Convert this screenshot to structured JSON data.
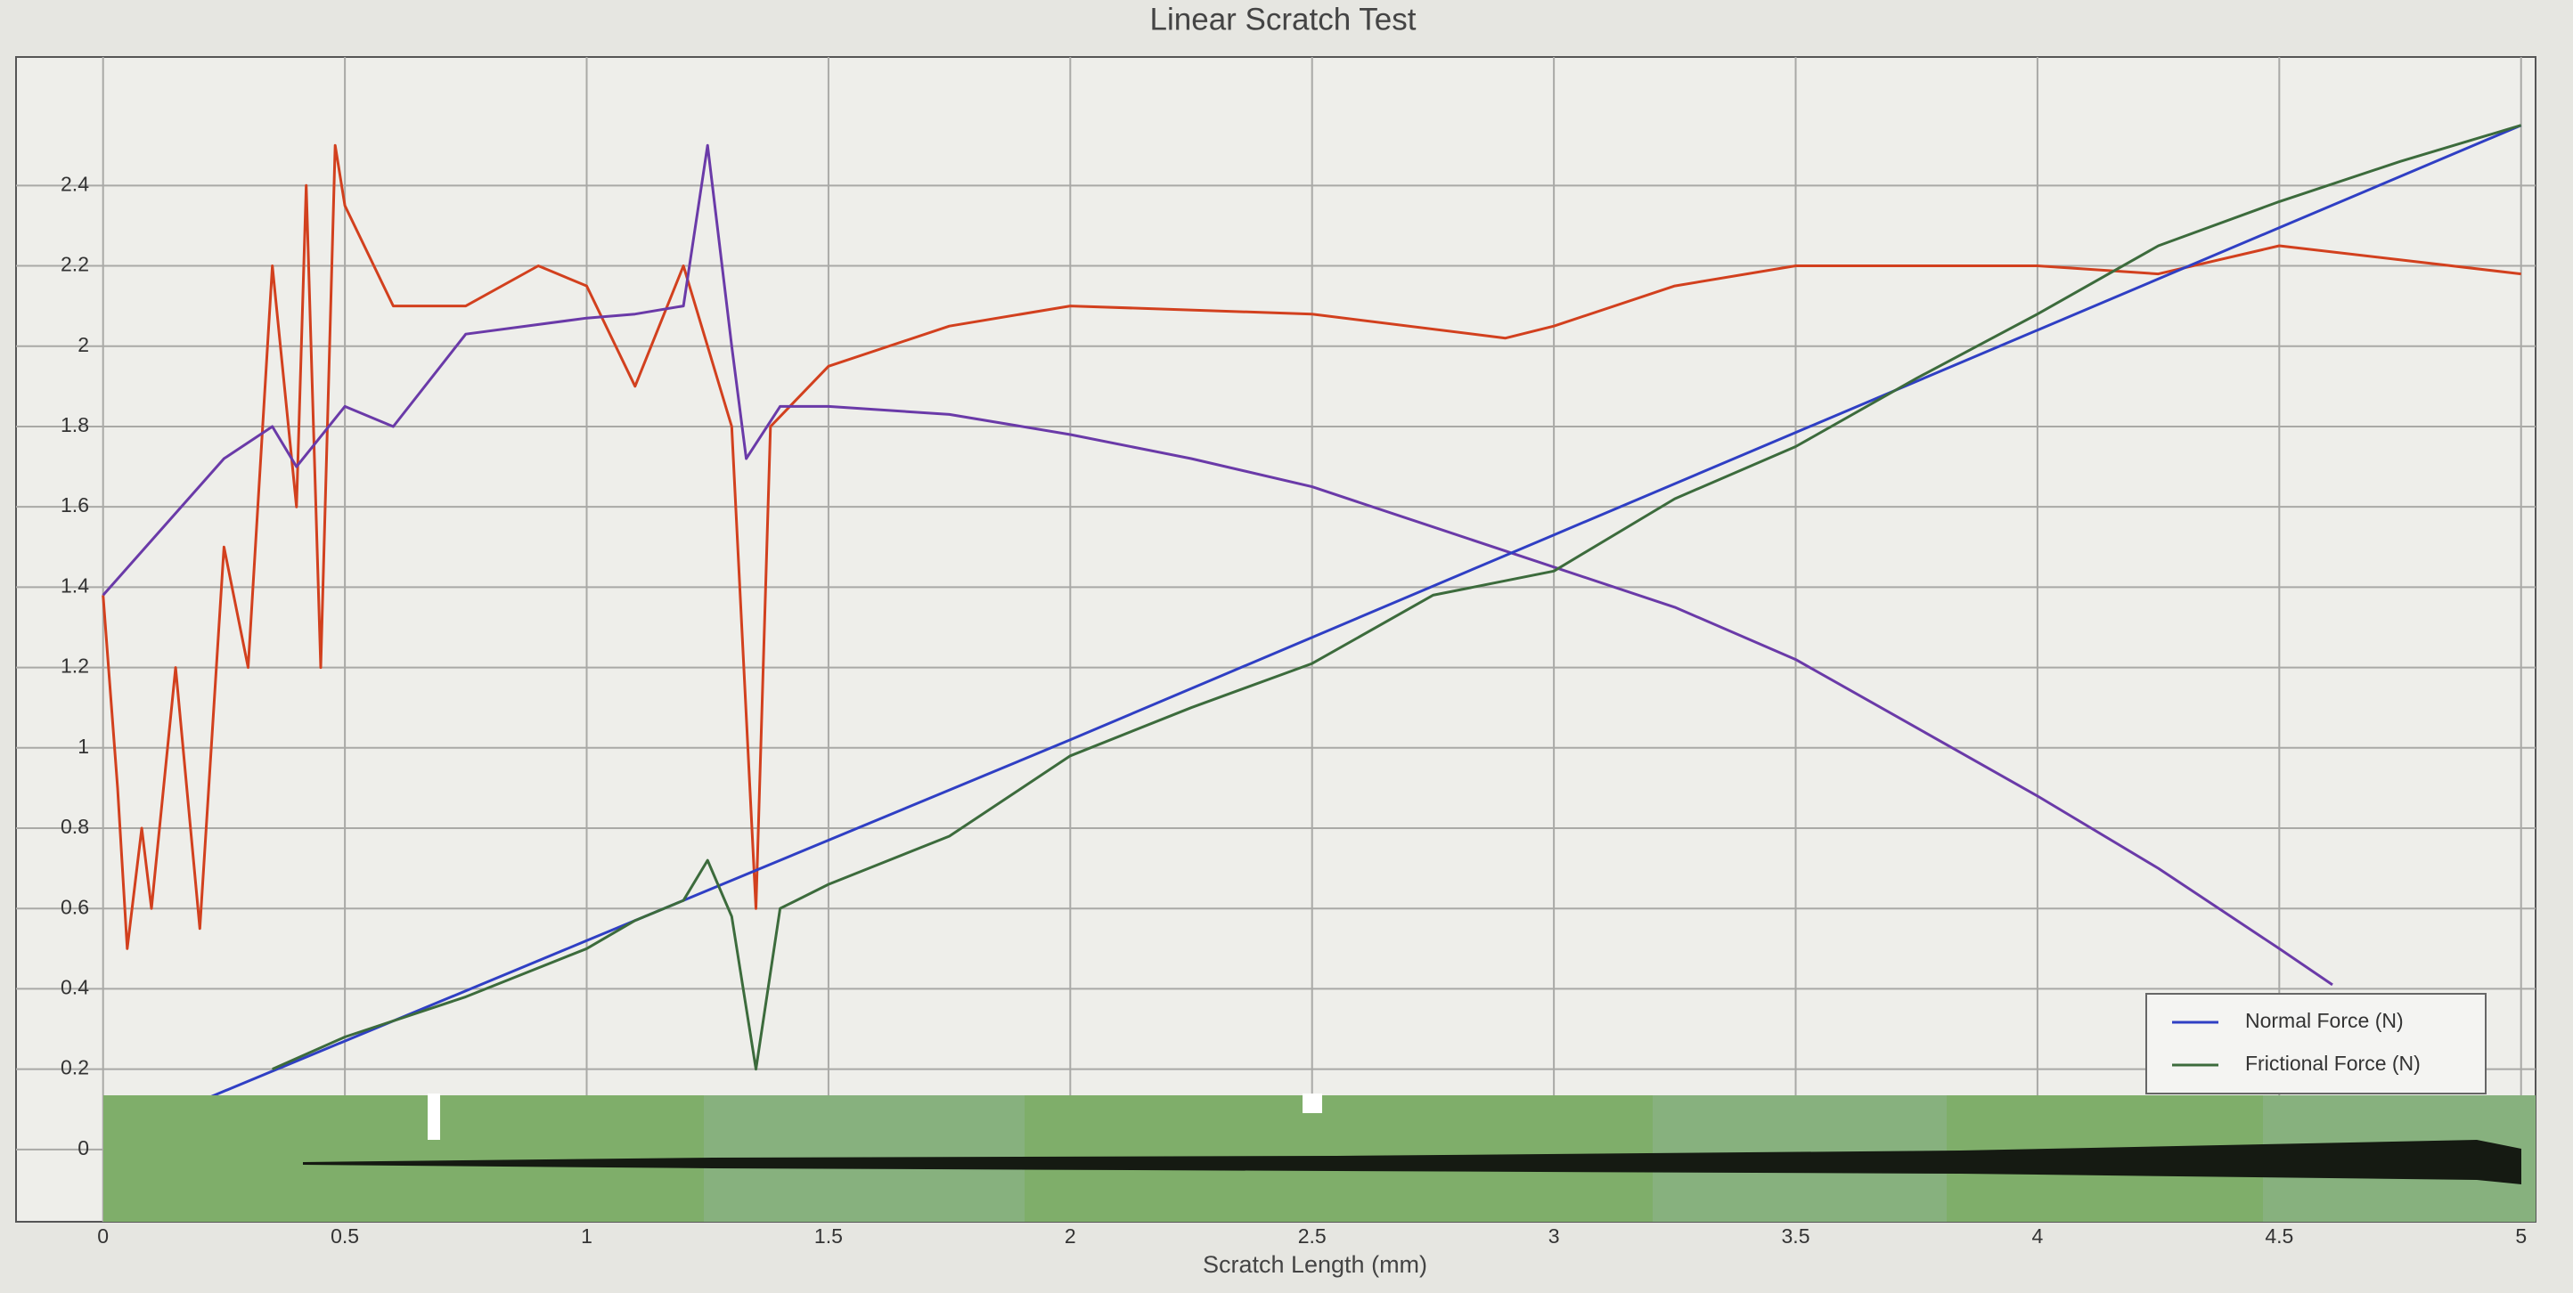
{
  "chart_data": {
    "type": "line",
    "title": "Linear Scratch Test",
    "x_label": "Scratch Length (mm)",
    "xlim": [
      -0.18,
      5.03
    ],
    "xticks": [
      0,
      0.5,
      1,
      1.5,
      2,
      2.5,
      3,
      3.5,
      4,
      4.5,
      5
    ],
    "ylim": [
      -0.18,
      2.72
    ],
    "yticks": [
      0,
      0.2,
      0.4,
      0.6,
      0.8,
      1,
      1.2,
      1.4,
      1.6,
      1.8,
      2,
      2.2,
      2.4
    ],
    "grid": true,
    "legend": "lower right",
    "series": [
      {
        "color": "#d2401e",
        "x": [
          0,
          0.03,
          0.05,
          0.08,
          0.1,
          0.15,
          0.2,
          0.25,
          0.3,
          0.35,
          0.4,
          0.42,
          0.45,
          0.48,
          0.5,
          0.6,
          0.75,
          0.9,
          1.0,
          1.1,
          1.2,
          1.3,
          1.35,
          1.38,
          1.5,
          1.75,
          2.0,
          2.5,
          2.9,
          3.0,
          3.25,
          3.5,
          3.75,
          4.0,
          4.25,
          4.5,
          5.0
        ],
        "values": [
          1.38,
          0.9,
          0.5,
          0.8,
          0.6,
          1.2,
          0.55,
          1.5,
          1.2,
          2.2,
          1.6,
          2.4,
          1.2,
          2.5,
          2.35,
          2.1,
          2.1,
          2.2,
          2.15,
          1.9,
          2.2,
          1.8,
          0.6,
          1.8,
          1.95,
          2.05,
          2.1,
          2.08,
          2.02,
          2.05,
          2.15,
          2.2,
          2.2,
          2.2,
          2.18,
          2.25,
          2.18
        ]
      },
      {
        "color": "#6a3aa8",
        "x": [
          0,
          0.25,
          0.35,
          0.4,
          0.5,
          0.6,
          0.75,
          1.0,
          1.1,
          1.2,
          1.25,
          1.3,
          1.33,
          1.4,
          1.5,
          1.75,
          2.0,
          2.25,
          2.5,
          2.75,
          3.0,
          3.25,
          3.5,
          3.75,
          4.0,
          4.25,
          4.5,
          4.61
        ],
        "values": [
          1.38,
          1.72,
          1.8,
          1.7,
          1.85,
          1.8,
          2.03,
          2.07,
          2.08,
          2.1,
          2.5,
          2.0,
          1.72,
          1.85,
          1.85,
          1.83,
          1.78,
          1.72,
          1.65,
          1.55,
          1.45,
          1.35,
          1.22,
          1.05,
          0.88,
          0.7,
          0.5,
          0.41
        ]
      },
      {
        "name": "Normal Force (N)",
        "color": "#2f3fc4",
        "x": [
          0.22,
          1,
          2,
          3,
          4,
          5
        ],
        "values": [
          0.13,
          0.52,
          1.02,
          1.53,
          2.04,
          2.55
        ]
      },
      {
        "name": "Frictional Force (N)",
        "color": "#3c6b3c",
        "x": [
          0.35,
          0.5,
          0.75,
          1.0,
          1.1,
          1.2,
          1.25,
          1.3,
          1.35,
          1.4,
          1.5,
          1.75,
          2.0,
          2.25,
          2.5,
          2.75,
          3.0,
          3.25,
          3.5,
          3.75,
          4.0,
          4.25,
          4.5,
          4.75,
          5.0
        ],
        "values": [
          0.2,
          0.28,
          0.38,
          0.5,
          0.57,
          0.62,
          0.72,
          0.58,
          0.2,
          0.6,
          0.66,
          0.78,
          0.98,
          1.1,
          1.21,
          1.38,
          1.44,
          1.62,
          1.75,
          1.92,
          2.08,
          2.25,
          2.36,
          2.46,
          2.55
        ]
      }
    ]
  }
}
